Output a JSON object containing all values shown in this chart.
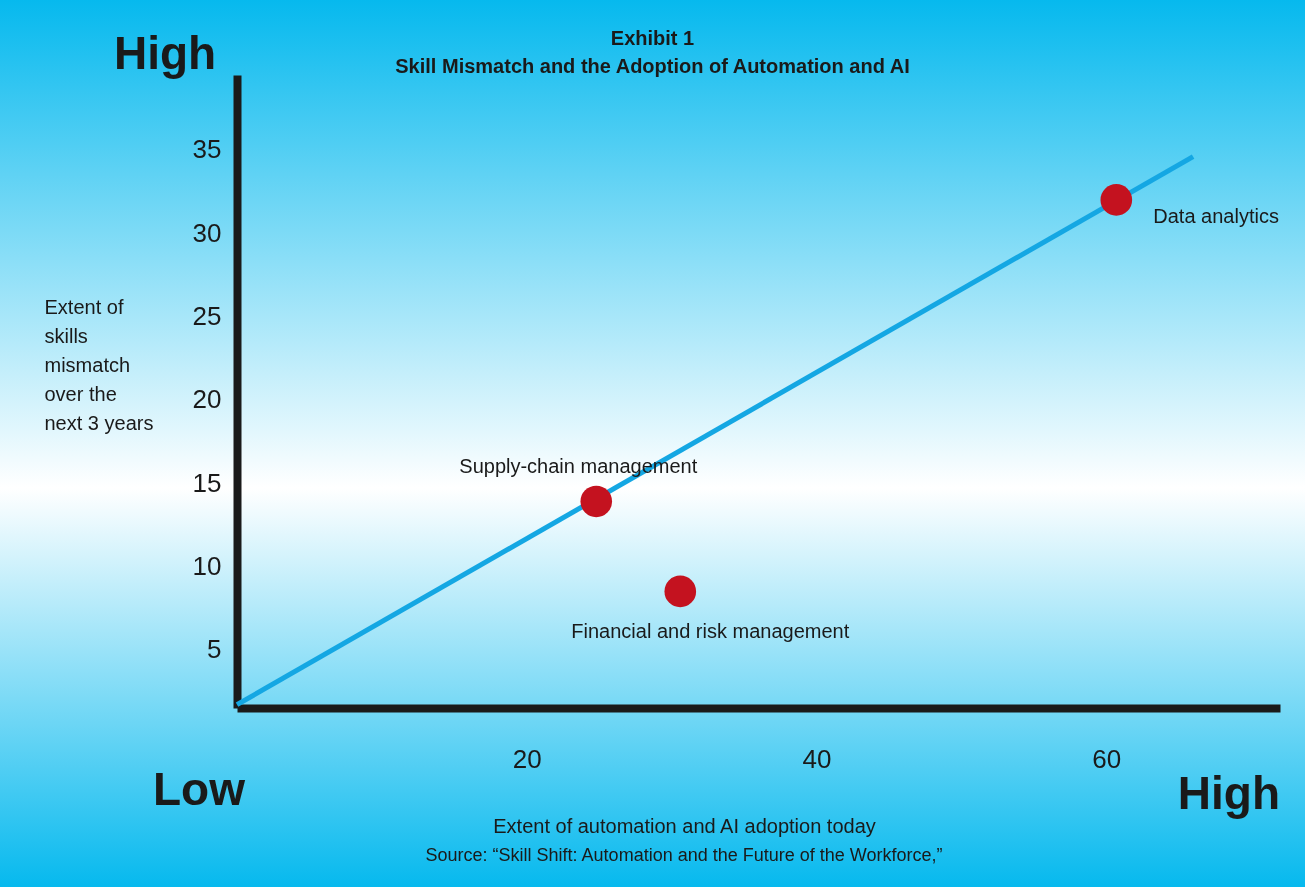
{
  "chart_data": {
    "type": "scatter",
    "title": "Exhibit 1",
    "subtitle": "Skill Mismatch and the Adoption of Automation and AI",
    "xlabel": "Extent of automation and AI adoption today",
    "ylabel": "Extent of skills mismatch over the next 3 years",
    "xlim": [
      0,
      72
    ],
    "xticks": [
      20,
      40,
      60
    ],
    "ylim": [
      1.5,
      39.5
    ],
    "yticks": [
      5,
      10,
      15,
      20,
      25,
      30,
      35
    ],
    "grid": false,
    "series": [
      {
        "type": "line",
        "color": "#14a7e3",
        "x": [
          0,
          66
        ],
        "values": [
          1.7,
          34.6
        ]
      },
      {
        "marker": "circle",
        "color": "#c4121f",
        "x": [
          24.8,
          30.6,
          60.7
        ],
        "values": [
          13.9,
          8.5,
          32.0
        ]
      }
    ],
    "annotations": [
      "High",
      "Low",
      "High",
      "Source: “Skill Shift: Automation and the Future of the Workforce,”",
      {
        "text": "Supply-chain management",
        "x": 24.8,
        "y": 13.9
      },
      {
        "text": "Financial and risk management",
        "x": 30.6,
        "y": 8.5
      },
      {
        "text": "Data analytics",
        "x": 60.7,
        "y": 32.0
      }
    ]
  }
}
